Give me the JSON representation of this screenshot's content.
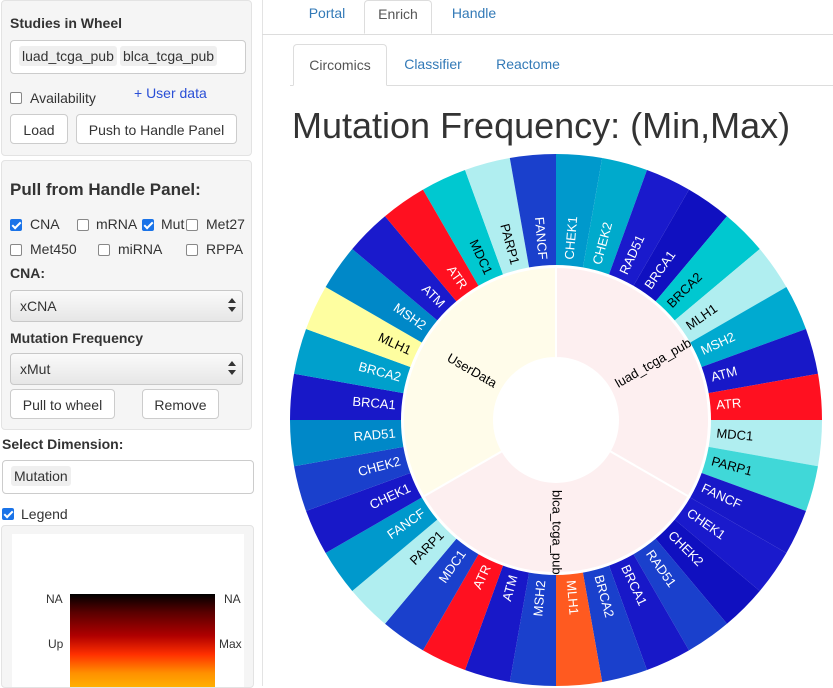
{
  "sidebar": {
    "studies_title": "Studies in Wheel",
    "studies": [
      "luad_tcga_pub",
      "blca_tcga_pub"
    ],
    "availability_label": "Availability",
    "user_data_link": "+ User data",
    "load_button": "Load",
    "push_button": "Push to Handle Panel",
    "pull_title": "Pull from Handle Panel:",
    "data_types": [
      {
        "label": "CNA",
        "checked": true
      },
      {
        "label": "mRNA",
        "checked": false
      },
      {
        "label": "Mut",
        "checked": true
      },
      {
        "label": "Met27",
        "checked": false
      },
      {
        "label": "Met450",
        "checked": false
      },
      {
        "label": "miRNA",
        "checked": false
      },
      {
        "label": "RPPA",
        "checked": false
      }
    ],
    "cna_label": "CNA:",
    "cna_value": "xCNA",
    "mutfreq_label": "Mutation Frequency",
    "mutfreq_value": "xMut",
    "pull_button": "Pull to wheel",
    "remove_button": "Remove",
    "dimension_label": "Select Dimension:",
    "dimension_value": "Mutation",
    "legend_label": "Legend",
    "legend_checked": true,
    "legend_scale": {
      "top_left": "NA",
      "top_right": "NA",
      "mid_left": "Up",
      "mid_right": "Max"
    }
  },
  "tabs": [
    "Portal",
    "Enrich",
    "Handle"
  ],
  "active_tab": "Enrich",
  "subtabs": [
    "Circomics",
    "Classifier",
    "Reactome"
  ],
  "active_subtab": "Circomics",
  "main_title": "Mutation Frequency: (Min,Max)",
  "wheel": {
    "inner_groups": [
      {
        "label": "luad_tcga_pub",
        "start": 0,
        "end": 120,
        "color": "#fdeff0"
      },
      {
        "label": "blca_tcga_pub",
        "start": 120,
        "end": 240,
        "color": "#fdeff0"
      },
      {
        "label": "UserData",
        "start": 240,
        "end": 360,
        "color": "#fffcea"
      }
    ],
    "segments": [
      {
        "gene": "CHEK1",
        "color": "#0099cc"
      },
      {
        "gene": "CHEK2",
        "color": "#00aacc"
      },
      {
        "gene": "RAD51",
        "color": "#1a1acc"
      },
      {
        "gene": "BRCA1",
        "color": "#1010c0"
      },
      {
        "gene": "BRCA2",
        "color": "#00c8d0"
      },
      {
        "gene": "MLH1",
        "color": "#b0eef0"
      },
      {
        "gene": "MSH2",
        "color": "#00aad0"
      },
      {
        "gene": "ATM",
        "color": "#1818c8"
      },
      {
        "gene": "ATR",
        "color": "#ff1020"
      },
      {
        "gene": "MDC1",
        "color": "#b0eef0"
      },
      {
        "gene": "PARP1",
        "color": "#40d8d8"
      },
      {
        "gene": "FANCF",
        "color": "#1818c8"
      },
      {
        "gene": "CHEK1",
        "color": "#1a1acc"
      },
      {
        "gene": "CHEK2",
        "color": "#1010c0"
      },
      {
        "gene": "RAD51",
        "color": "#1a40cc"
      },
      {
        "gene": "BRCA1",
        "color": "#1818c8"
      },
      {
        "gene": "BRCA2",
        "color": "#1a40cc"
      },
      {
        "gene": "MLH1",
        "color": "#ff5a20"
      },
      {
        "gene": "MSH2",
        "color": "#1a40cc"
      },
      {
        "gene": "ATM",
        "color": "#1818c8"
      },
      {
        "gene": "ATR",
        "color": "#ff1020"
      },
      {
        "gene": "MDC1",
        "color": "#1a40cc"
      },
      {
        "gene": "PARP1",
        "color": "#b0eef0"
      },
      {
        "gene": "FANCF",
        "color": "#0099cc"
      },
      {
        "gene": "CHEK1",
        "color": "#1818c8"
      },
      {
        "gene": "CHEK2",
        "color": "#1a40cc"
      },
      {
        "gene": "RAD51",
        "color": "#0088c8"
      },
      {
        "gene": "BRCA1",
        "color": "#1818c8"
      },
      {
        "gene": "BRCA2",
        "color": "#00a0cc"
      },
      {
        "gene": "MLH1",
        "color": "#fefea0"
      },
      {
        "gene": "MSH2",
        "color": "#0088c8"
      },
      {
        "gene": "ATM",
        "color": "#1a1acc"
      },
      {
        "gene": "ATR",
        "color": "#ff1020"
      },
      {
        "gene": "MDC1",
        "color": "#00c8d0"
      },
      {
        "gene": "PARP1",
        "color": "#b0eef0"
      },
      {
        "gene": "FANCF",
        "color": "#1a40cc"
      }
    ]
  }
}
